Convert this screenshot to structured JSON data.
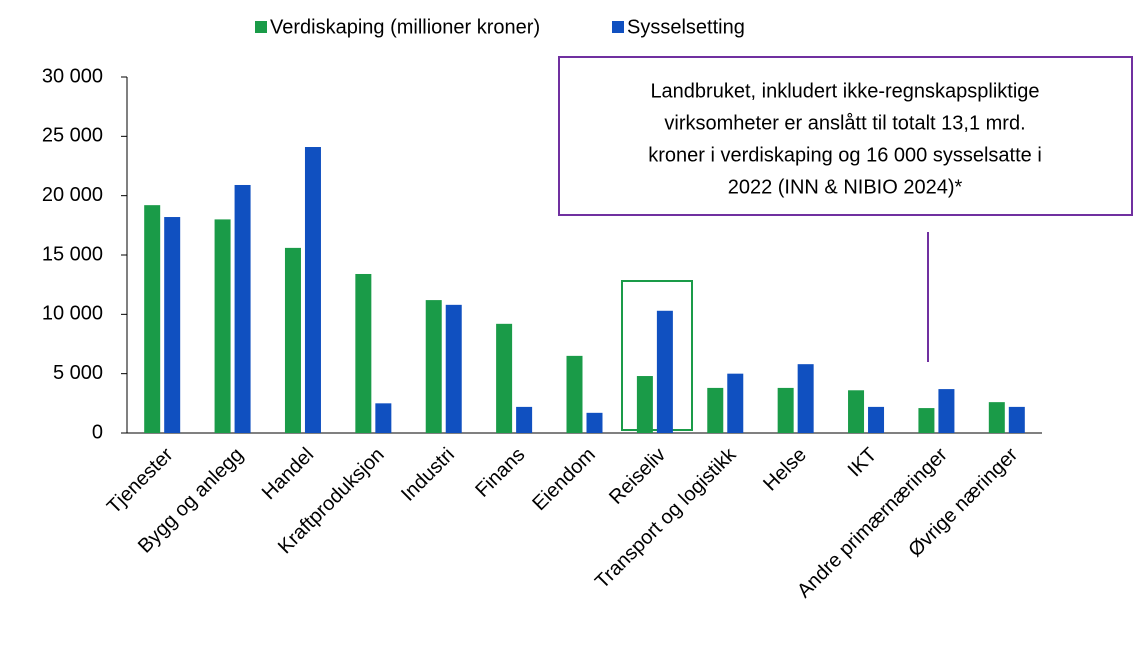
{
  "chart_data": {
    "type": "bar",
    "categories": [
      "Tjenester",
      "Bygg og anlegg",
      "Handel",
      "Kraftproduksjon",
      "Industri",
      "Finans",
      "Eiendom",
      "Reiseliv",
      "Transport og logistikk",
      "Helse",
      "IKT",
      "Andre primærnæringer",
      "Øvrige næringer"
    ],
    "series": [
      {
        "name": "Verdiskaping (millioner kroner)",
        "color": "#1a9b48",
        "values": [
          19200,
          18000,
          15600,
          13400,
          11200,
          9200,
          6500,
          4800,
          3800,
          3800,
          3600,
          2100,
          2600
        ]
      },
      {
        "name": "Sysselsetting",
        "color": "#1050c0",
        "values": [
          18200,
          20900,
          24100,
          2500,
          10800,
          2200,
          1700,
          10300,
          5000,
          5800,
          2200,
          3700,
          2200
        ]
      }
    ],
    "ylim": [
      0,
      30000
    ],
    "yticks": [
      0,
      {
        "value": 5000,
        "label": "5 000"
      },
      {
        "value": 10000,
        "label": "10 000"
      },
      {
        "value": 15000,
        "label": "15 000"
      },
      {
        "value": 20000,
        "label": "20 000"
      },
      {
        "value": 25000,
        "label": "25 000"
      },
      {
        "value": 30000,
        "label": "30 000"
      }
    ],
    "grid": false,
    "legend": "top",
    "annotation": [
      "Landbruket, inkludert ikke-regnskapspliktige",
      "virksomheter er anslått til totalt 13,1 mrd.",
      "kroner i verdiskaping og 16 000 sysselsatte i",
      "2022 (INN & NIBIO 2024)*"
    ]
  }
}
